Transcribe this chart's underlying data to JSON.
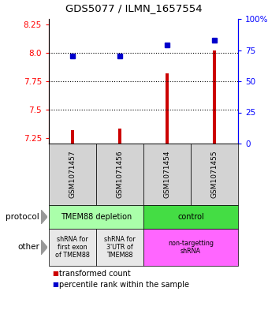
{
  "title": "GDS5077 / ILMN_1657554",
  "samples": [
    "GSM1071457",
    "GSM1071456",
    "GSM1071454",
    "GSM1071455"
  ],
  "red_values": [
    7.32,
    7.33,
    7.82,
    8.02
  ],
  "blue_values": [
    70,
    70,
    79,
    83
  ],
  "ylim_left": [
    7.2,
    8.3
  ],
  "ylim_right": [
    0,
    100
  ],
  "yticks_left": [
    7.25,
    7.5,
    7.75,
    8.0,
    8.25
  ],
  "yticks_right": [
    0,
    25,
    50,
    75,
    100
  ],
  "ytick_labels_right": [
    "0",
    "25",
    "50",
    "75",
    "100%"
  ],
  "hlines": [
    8.0,
    7.75,
    7.5
  ],
  "protocol_row": [
    {
      "label": "TMEM88 depletion",
      "span": [
        0,
        2
      ],
      "color": "#AAFFAA"
    },
    {
      "label": "control",
      "span": [
        2,
        4
      ],
      "color": "#44DD44"
    }
  ],
  "other_row": [
    {
      "label": "shRNA for\nfirst exon\nof TMEM88",
      "span": [
        0,
        1
      ],
      "color": "#E8E8E8"
    },
    {
      "label": "shRNA for\n3'UTR of\nTMEM88",
      "span": [
        1,
        2
      ],
      "color": "#E8E8E8"
    },
    {
      "label": "non-targetting\nshRNA",
      "span": [
        2,
        4
      ],
      "color": "#FF66FF"
    }
  ],
  "legend_red": "transformed count",
  "legend_blue": "percentile rank within the sample",
  "bar_color": "#CC0000",
  "dot_color": "#0000CC",
  "bar_bottom": 7.2,
  "protocol_label": "protocol",
  "other_label": "other",
  "sample_bg_color": "#D3D3D3",
  "arrow_color": "#999999"
}
